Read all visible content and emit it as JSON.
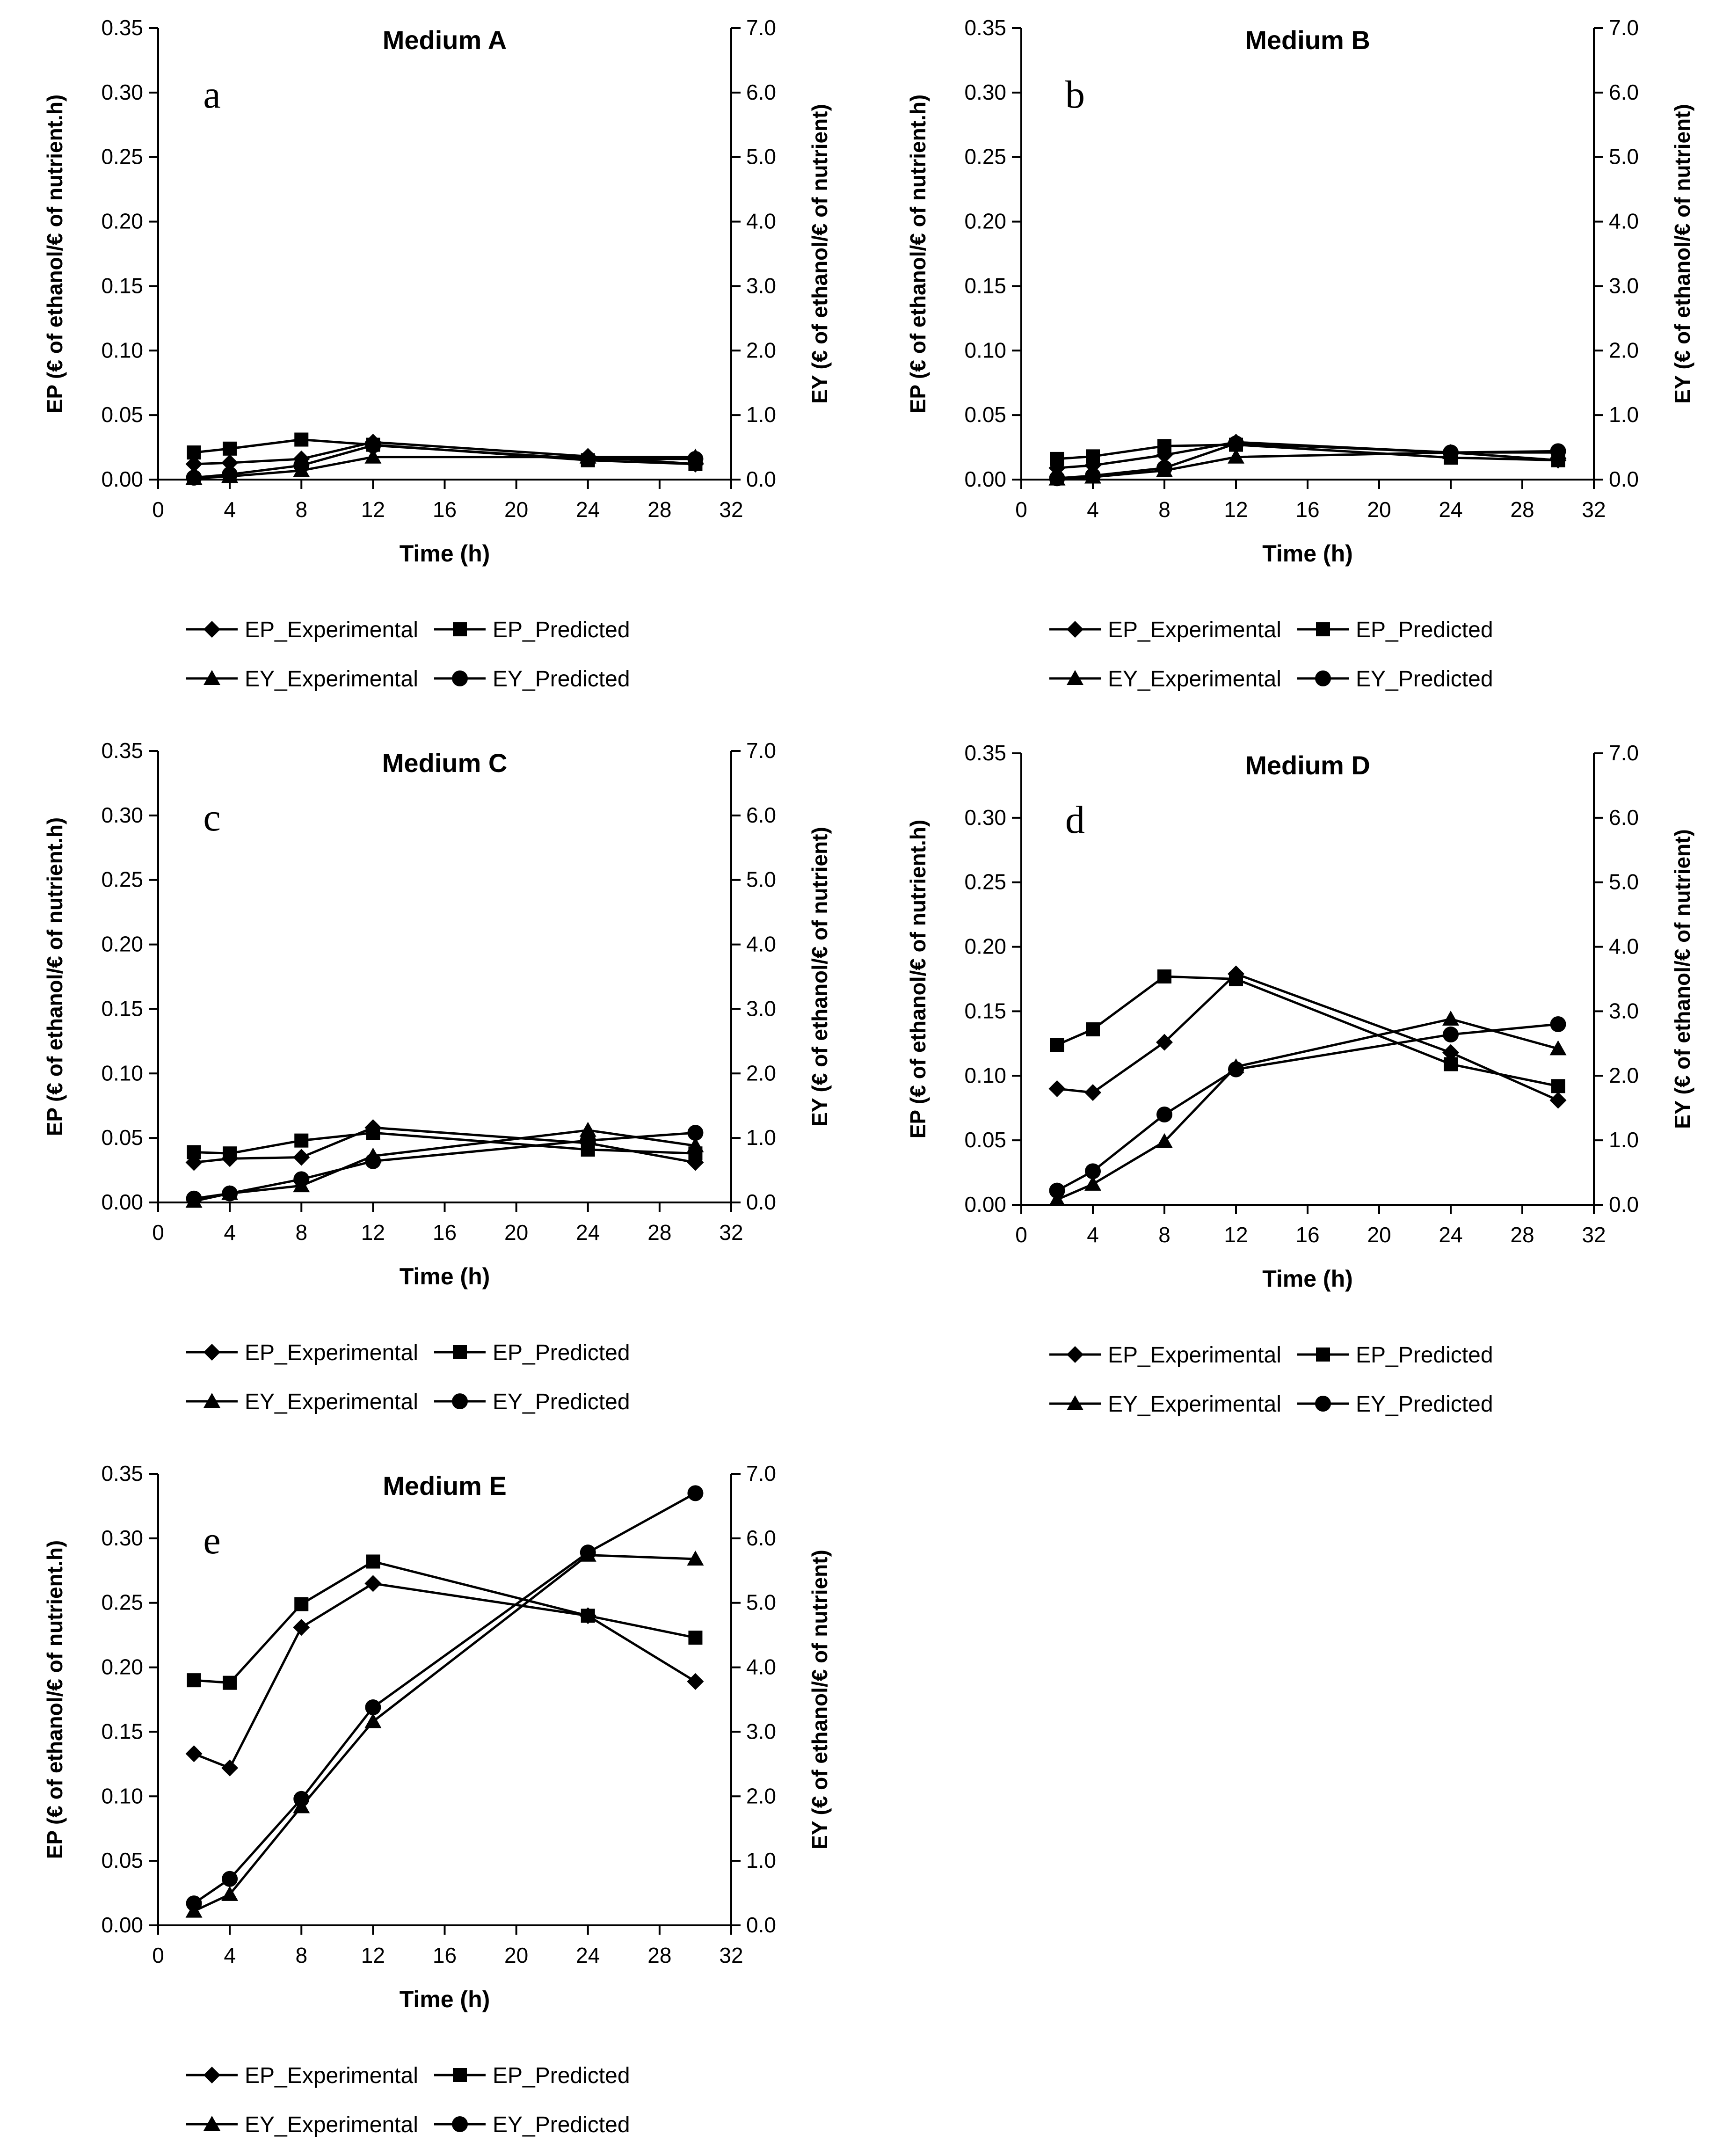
{
  "figure": {
    "panels": [
      {
        "letter": "a",
        "title": "Medium A"
      },
      {
        "letter": "b",
        "title": "Medium B"
      },
      {
        "letter": "c",
        "title": "Medium C"
      },
      {
        "letter": "d",
        "title": "Medium D"
      },
      {
        "letter": "e",
        "title": "Medium E"
      }
    ]
  },
  "chart_data": [
    {
      "type": "line",
      "title": "Medium A",
      "panel_letter": "a",
      "xlabel": "Time (h)",
      "ylabel": "EP (€ of ethanol/€ of nutrient.h)",
      "y2label": "EY (€ of ethanol/€ of nutrient)",
      "xlim": [
        0,
        32
      ],
      "ylim": [
        0,
        0.35
      ],
      "y2lim": [
        0,
        7.0
      ],
      "xticks": [
        "0",
        "4",
        "8",
        "12",
        "16",
        "20",
        "24",
        "28",
        "32"
      ],
      "yticks": [
        "0.00",
        "0.05",
        "0.10",
        "0.15",
        "0.20",
        "0.25",
        "0.30",
        "0.35"
      ],
      "y2ticks": [
        "0.0",
        "1.0",
        "2.0",
        "3.0",
        "4.0",
        "5.0",
        "6.0",
        "7.0"
      ],
      "legend": [
        "EP_Experimental",
        "EP_Predicted",
        "EY_Experimental",
        "EY_Predicted"
      ],
      "x": [
        2,
        4,
        8,
        12,
        24,
        30
      ],
      "series": [
        {
          "name": "EP_Experimental",
          "axis": "left",
          "marker": "diamond",
          "values": [
            0.012,
            0.013,
            0.016,
            0.029,
            0.018,
            0.012
          ]
        },
        {
          "name": "EP_Predicted",
          "axis": "left",
          "marker": "square",
          "values": [
            0.021,
            0.024,
            0.031,
            0.027,
            0.015,
            0.012
          ]
        },
        {
          "name": "EY_Experimental",
          "axis": "right",
          "marker": "triangle",
          "values": [
            0.02,
            0.05,
            0.14,
            0.35,
            0.35,
            0.35
          ]
        },
        {
          "name": "EY_Predicted",
          "axis": "right",
          "marker": "circle",
          "values": [
            0.03,
            0.08,
            0.22,
            0.53,
            0.32,
            0.32
          ]
        }
      ]
    },
    {
      "type": "line",
      "title": "Medium B",
      "panel_letter": "b",
      "xlabel": "Time (h)",
      "ylabel": "EP (€ of ethanol/€ of nutrient.h)",
      "y2label": "EY (€ of ethanol/€ of nutrient)",
      "xlim": [
        0,
        32
      ],
      "ylim": [
        0,
        0.35
      ],
      "y2lim": [
        0,
        7.0
      ],
      "xticks": [
        "0",
        "4",
        "8",
        "12",
        "16",
        "20",
        "24",
        "28",
        "32"
      ],
      "yticks": [
        "0.00",
        "0.05",
        "0.10",
        "0.15",
        "0.20",
        "0.25",
        "0.30",
        "0.35"
      ],
      "y2ticks": [
        "0.0",
        "1.0",
        "2.0",
        "3.0",
        "4.0",
        "5.0",
        "6.0",
        "7.0"
      ],
      "legend": [
        "EP_Experimental",
        "EP_Predicted",
        "EY_Experimental",
        "EY_Predicted"
      ],
      "x": [
        2,
        4,
        8,
        12,
        24,
        30
      ],
      "series": [
        {
          "name": "EP_Experimental",
          "axis": "left",
          "marker": "diamond",
          "values": [
            0.009,
            0.011,
            0.019,
            0.029,
            0.021,
            0.015
          ]
        },
        {
          "name": "EP_Predicted",
          "axis": "left",
          "marker": "square",
          "values": [
            0.016,
            0.018,
            0.026,
            0.027,
            0.017,
            0.015
          ]
        },
        {
          "name": "EY_Experimental",
          "axis": "right",
          "marker": "triangle",
          "values": [
            0.01,
            0.04,
            0.14,
            0.35,
            0.42,
            0.42
          ]
        },
        {
          "name": "EY_Predicted",
          "axis": "right",
          "marker": "circle",
          "values": [
            0.02,
            0.06,
            0.18,
            0.56,
            0.42,
            0.44
          ]
        }
      ]
    },
    {
      "type": "line",
      "title": "Medium C",
      "panel_letter": "c",
      "xlabel": "Time (h)",
      "ylabel": "EP (€ of ethanol/€ of nutrient.h)",
      "y2label": "EY (€ of ethanol/€ of nutrient)",
      "xlim": [
        0,
        32
      ],
      "ylim": [
        0,
        0.35
      ],
      "y2lim": [
        0,
        7.0
      ],
      "xticks": [
        "0",
        "4",
        "8",
        "12",
        "16",
        "20",
        "24",
        "28",
        "32"
      ],
      "yticks": [
        "0.00",
        "0.05",
        "0.10",
        "0.15",
        "0.20",
        "0.25",
        "0.30",
        "0.35"
      ],
      "y2ticks": [
        "0.0",
        "1.0",
        "2.0",
        "3.0",
        "4.0",
        "5.0",
        "6.0",
        "7.0"
      ],
      "legend": [
        "EP_Experimental",
        "EP_Predicted",
        "EY_Experimental",
        "EY_Predicted"
      ],
      "x": [
        2,
        4,
        8,
        12,
        24,
        30
      ],
      "series": [
        {
          "name": "EP_Experimental",
          "axis": "left",
          "marker": "diamond",
          "values": [
            0.031,
            0.034,
            0.035,
            0.058,
            0.046,
            0.031
          ]
        },
        {
          "name": "EP_Predicted",
          "axis": "left",
          "marker": "square",
          "values": [
            0.039,
            0.038,
            0.048,
            0.054,
            0.041,
            0.038
          ]
        },
        {
          "name": "EY_Experimental",
          "axis": "right",
          "marker": "triangle",
          "values": [
            0.02,
            0.14,
            0.26,
            0.72,
            1.12,
            0.88
          ]
        },
        {
          "name": "EY_Predicted",
          "axis": "right",
          "marker": "circle",
          "values": [
            0.06,
            0.14,
            0.36,
            0.64,
            0.96,
            1.08
          ]
        }
      ]
    },
    {
      "type": "line",
      "title": "Medium D",
      "panel_letter": "d",
      "xlabel": "Time (h)",
      "ylabel": "EP (€ of ethanol/€ of nutrient.h)",
      "y2label": "EY (€ of ethanol/€ of nutrient)",
      "xlim": [
        0,
        32
      ],
      "ylim": [
        0,
        0.35
      ],
      "y2lim": [
        0,
        7.0
      ],
      "xticks": [
        "0",
        "4",
        "8",
        "12",
        "16",
        "20",
        "24",
        "28",
        "32"
      ],
      "yticks": [
        "0.00",
        "0.05",
        "0.10",
        "0.15",
        "0.20",
        "0.25",
        "0.30",
        "0.35"
      ],
      "y2ticks": [
        "0.0",
        "1.0",
        "2.0",
        "3.0",
        "4.0",
        "5.0",
        "6.0",
        "7.0"
      ],
      "legend": [
        "EP_Experimental",
        "EP_Predicted",
        "EY_Experimental",
        "EY_Predicted"
      ],
      "x": [
        2,
        4,
        8,
        12,
        24,
        30
      ],
      "series": [
        {
          "name": "EP_Experimental",
          "axis": "left",
          "marker": "diamond",
          "values": [
            0.09,
            0.087,
            0.126,
            0.179,
            0.118,
            0.081
          ]
        },
        {
          "name": "EP_Predicted",
          "axis": "left",
          "marker": "square",
          "values": [
            0.124,
            0.136,
            0.177,
            0.175,
            0.109,
            0.092
          ]
        },
        {
          "name": "EY_Experimental",
          "axis": "right",
          "marker": "triangle",
          "values": [
            0.08,
            0.32,
            0.98,
            2.14,
            2.88,
            2.42
          ]
        },
        {
          "name": "EY_Predicted",
          "axis": "right",
          "marker": "circle",
          "values": [
            0.22,
            0.52,
            1.4,
            2.1,
            2.64,
            2.8
          ]
        }
      ]
    },
    {
      "type": "line",
      "title": "Medium E",
      "panel_letter": "e",
      "xlabel": "Time (h)",
      "ylabel": "EP (€ of ethanol/€ of nutrient.h)",
      "y2label": "EY (€ of ethanol/€ of nutrient)",
      "xlim": [
        0,
        32
      ],
      "ylim": [
        0,
        0.35
      ],
      "y2lim": [
        0,
        7.0
      ],
      "xticks": [
        "0",
        "4",
        "8",
        "12",
        "16",
        "20",
        "24",
        "28",
        "32"
      ],
      "yticks": [
        "0.00",
        "0.05",
        "0.10",
        "0.15",
        "0.20",
        "0.25",
        "0.30",
        "0.35"
      ],
      "y2ticks": [
        "0.0",
        "1.0",
        "2.0",
        "3.0",
        "4.0",
        "5.0",
        "6.0",
        "7.0"
      ],
      "legend": [
        "EP_Experimental",
        "EP_Predicted",
        "EY_Experimental",
        "EY_Predicted"
      ],
      "x": [
        2,
        4,
        8,
        12,
        24,
        30
      ],
      "series": [
        {
          "name": "EP_Experimental",
          "axis": "left",
          "marker": "diamond",
          "values": [
            0.133,
            0.122,
            0.231,
            0.265,
            0.24,
            0.189
          ]
        },
        {
          "name": "EP_Predicted",
          "axis": "left",
          "marker": "square",
          "values": [
            0.19,
            0.188,
            0.249,
            0.282,
            0.24,
            0.223
          ]
        },
        {
          "name": "EY_Experimental",
          "axis": "right",
          "marker": "triangle",
          "values": [
            0.22,
            0.48,
            1.84,
            3.16,
            5.74,
            5.68
          ]
        },
        {
          "name": "EY_Predicted",
          "axis": "right",
          "marker": "circle",
          "values": [
            0.34,
            0.72,
            1.96,
            3.38,
            5.78,
            6.7
          ]
        }
      ]
    }
  ]
}
